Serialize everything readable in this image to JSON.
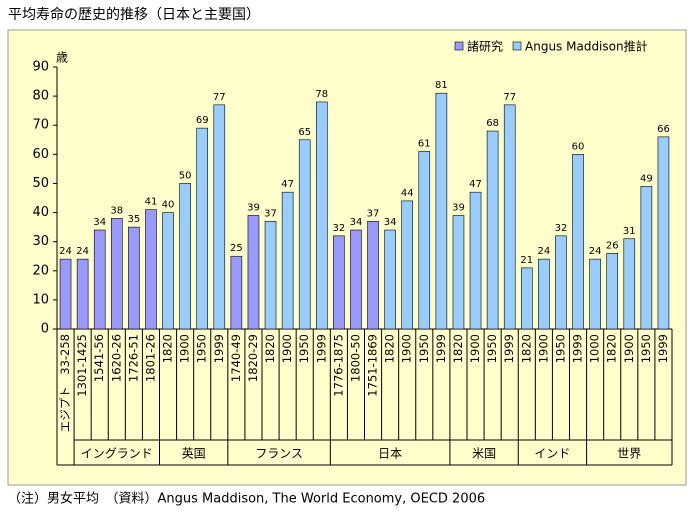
{
  "chart_data": {
    "type": "bar",
    "title": "平均寿命の歴史的推移（日本と主要国）",
    "y_label": "歳",
    "note": "（注）男女平均　（資料）Angus Maddison, The World Economy, OECD 2006",
    "categories": [
      "エジプト　33-258",
      "1301-1425",
      "1541-56",
      "1620-26",
      "1726-51",
      "1801-26",
      "1820",
      "1900",
      "1950",
      "1999",
      "1740-49",
      "1820-29",
      "1820",
      "1900",
      "1950",
      "1999",
      "1776-1875",
      "1800-50",
      "1751-1869",
      "1820",
      "1900",
      "1950",
      "1999",
      "1820",
      "1900",
      "1950",
      "1999",
      "1820",
      "1900",
      "1950",
      "1999",
      "1000",
      "1820",
      "1900",
      "1950",
      "1999"
    ],
    "category_groups": [
      null,
      "イングランド",
      "イングランド",
      "イングランド",
      "イングランド",
      "イングランド",
      "英国",
      "英国",
      "英国",
      "英国",
      "フランス",
      "フランス",
      "フランス",
      "フランス",
      "フランス",
      "フランス",
      "日本",
      "日本",
      "日本",
      "日本",
      "日本",
      "日本",
      "日本",
      "米国",
      "米国",
      "米国",
      "米国",
      "インド",
      "インド",
      "インド",
      "インド",
      "世界",
      "世界",
      "世界",
      "世界",
      "世界"
    ],
    "series": [
      {
        "name": "諸研究",
        "color": "#9999ff",
        "values": [
          24,
          24,
          34,
          38,
          35,
          41,
          null,
          null,
          null,
          null,
          25,
          39,
          null,
          null,
          null,
          null,
          32,
          34,
          37,
          null,
          null,
          null,
          null,
          null,
          null,
          null,
          null,
          null,
          null,
          null,
          null,
          null,
          null,
          null,
          null,
          null
        ]
      },
      {
        "name": "Angus Maddison推計",
        "color": "#99ccff",
        "values": [
          null,
          null,
          null,
          null,
          null,
          null,
          40,
          50,
          69,
          77,
          null,
          null,
          37,
          47,
          65,
          78,
          null,
          null,
          null,
          34,
          44,
          61,
          81,
          39,
          47,
          68,
          77,
          21,
          24,
          32,
          60,
          24,
          26,
          31,
          49,
          66
        ]
      }
    ],
    "ylim": [
      0,
      90
    ],
    "yticks": [
      0,
      10,
      20,
      30,
      40,
      50,
      60,
      70,
      80,
      90
    ],
    "grid": false,
    "legend": "top-right"
  }
}
